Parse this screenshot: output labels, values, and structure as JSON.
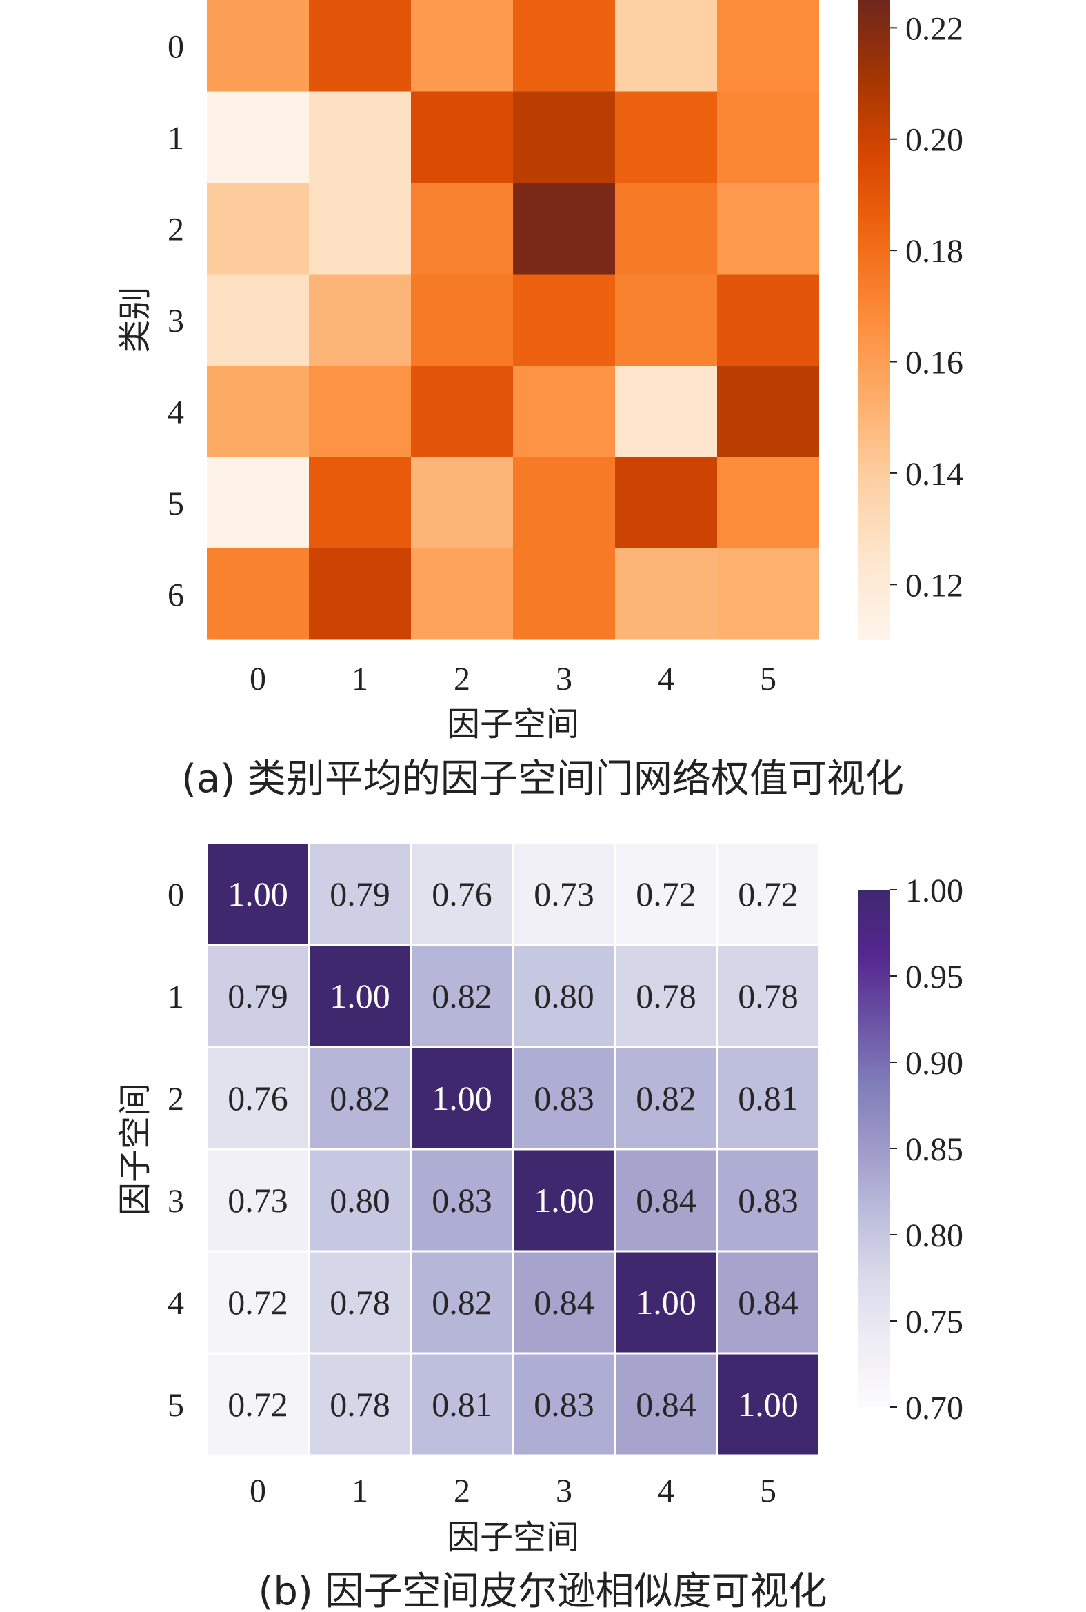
{
  "chart_data": [
    {
      "type": "heatmap",
      "caption": "(a) 类别平均的因子空间门网络权值可视化",
      "xlabel": "因子空间",
      "ylabel": "类别",
      "x_categories": [
        "0",
        "1",
        "2",
        "3",
        "4",
        "5"
      ],
      "y_categories": [
        "0",
        "1",
        "2",
        "3",
        "4",
        "5",
        "6"
      ],
      "colormap": "Oranges",
      "vmin": 0.11,
      "vmax": 0.225,
      "colorbar_ticks": [
        "0.12",
        "0.14",
        "0.16",
        "0.18",
        "0.20",
        "0.22"
      ],
      "annotate": false,
      "values": [
        [
          0.16,
          0.19,
          0.162,
          0.185,
          0.138,
          0.168
        ],
        [
          0.112,
          0.128,
          0.195,
          0.205,
          0.185,
          0.17
        ],
        [
          0.14,
          0.128,
          0.172,
          0.222,
          0.175,
          0.162
        ],
        [
          0.128,
          0.15,
          0.175,
          0.185,
          0.172,
          0.19
        ],
        [
          0.155,
          0.165,
          0.19,
          0.165,
          0.125,
          0.205
        ],
        [
          0.112,
          0.188,
          0.15,
          0.175,
          0.2,
          0.168
        ],
        [
          0.172,
          0.2,
          0.158,
          0.175,
          0.15,
          0.152
        ]
      ]
    },
    {
      "type": "heatmap",
      "caption": "(b) 因子空间皮尔逊相似度可视化",
      "xlabel": "因子空间",
      "ylabel": "因子空间",
      "x_categories": [
        "0",
        "1",
        "2",
        "3",
        "4",
        "5"
      ],
      "y_categories": [
        "0",
        "1",
        "2",
        "3",
        "4",
        "5"
      ],
      "colormap": "Purples",
      "vmin": 0.7,
      "vmax": 1.0,
      "colorbar_ticks": [
        "0.70",
        "0.75",
        "0.80",
        "0.85",
        "0.90",
        "0.95",
        "1.00"
      ],
      "annotate": true,
      "values": [
        [
          1.0,
          0.79,
          0.76,
          0.73,
          0.72,
          0.72
        ],
        [
          0.79,
          1.0,
          0.82,
          0.8,
          0.78,
          0.78
        ],
        [
          0.76,
          0.82,
          1.0,
          0.83,
          0.82,
          0.81
        ],
        [
          0.73,
          0.8,
          0.83,
          1.0,
          0.84,
          0.83
        ],
        [
          0.72,
          0.78,
          0.82,
          0.84,
          1.0,
          0.84
        ],
        [
          0.72,
          0.78,
          0.81,
          0.83,
          0.84,
          1.0
        ]
      ]
    }
  ]
}
